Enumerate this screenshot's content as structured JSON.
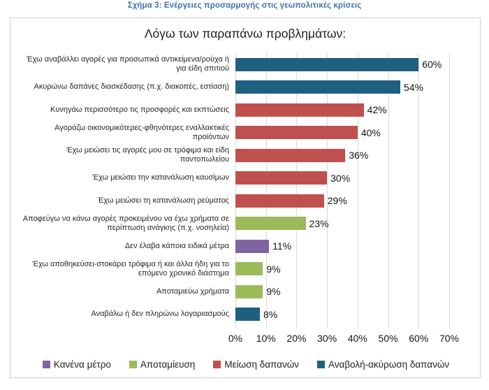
{
  "page": {
    "caption": "Σχήμα 3: Ενέργειες προσαρμογής στις γεωπολιτικές κρίσεις"
  },
  "colors": {
    "caption_blue": "#3e73b0",
    "gridline": "#d9d9d9",
    "box_border": "#cfcfcf"
  },
  "chart_data": {
    "type": "bar",
    "orientation": "horizontal",
    "title": "Λόγω των παραπάνω προβλημάτων:",
    "xlabel": "",
    "ylabel": "",
    "xlim": [
      0,
      70
    ],
    "x_ticks": [
      "0%",
      "10%",
      "20%",
      "30%",
      "40%",
      "50%",
      "60%",
      "70%"
    ],
    "grid": true,
    "legend_position": "bottom",
    "series": [
      {
        "name": "Κανένα μέτρο",
        "color": "#8064a2"
      },
      {
        "name": "Αποταμίευση",
        "color": "#9bbb59"
      },
      {
        "name": "Μείωση δαπανών",
        "color": "#c0504d"
      },
      {
        "name": "Αναβολή-ακύρωση δαπανών",
        "color": "#1f5f7f"
      }
    ],
    "bars": [
      {
        "label": "Έχω αναβάλλει αγορές για προσωπικά αντικείμενα/ρούχα ή για είδη σπιτιού",
        "value": 60,
        "value_label": "60%",
        "series": "Αναβολή-ακύρωση δαπανών"
      },
      {
        "label": "Ακυρώνω δαπάνες διασκέδασης (π.χ. διακοπές, εστίαση)",
        "value": 54,
        "value_label": "54%",
        "series": "Αναβολή-ακύρωση δαπανών"
      },
      {
        "label": "Κυνηγάω περισσότερο τις προσφορές και εκπτώσεις",
        "value": 42,
        "value_label": "42%",
        "series": "Μείωση δαπανών"
      },
      {
        "label": "Αγοράζω οικονομικότερες-φθηνότερες εναλλακτικές προϊόντων",
        "value": 40,
        "value_label": "40%",
        "series": "Μείωση δαπανών"
      },
      {
        "label": "Έχω μειώσει τις αγορές μου σε τρόφιμα και είδη παντοπωλείου",
        "value": 36,
        "value_label": "36%",
        "series": "Μείωση δαπανών"
      },
      {
        "label": "Έχω μειώσει την κατανάλωση καυσίμων",
        "value": 30,
        "value_label": "30%",
        "series": "Μείωση δαπανών"
      },
      {
        "label": "Έχω μειώσει τη κατανάλωση ρεύματος",
        "value": 29,
        "value_label": "29%",
        "series": "Μείωση δαπανών"
      },
      {
        "label": "Αποφεύγω να κάνω αγορές προκειμένου να έχω χρήματα σε περίπτωση ανάγκης (π.χ. νοσηλεία)",
        "value": 23,
        "value_label": "23%",
        "series": "Αποταμίευση"
      },
      {
        "label": "Δεν έλαβα κάποια ειδικά μέτρα",
        "value": 11,
        "value_label": "11%",
        "series": "Κανένα μέτρο"
      },
      {
        "label": "Έχω αποθηκεύσει-στοκάρει τρόφιμα ή και άλλα ήδη για το επόμενο χρονικό διάστημα",
        "value": 9,
        "value_label": "9%",
        "series": "Αποταμίευση"
      },
      {
        "label": "Αποταμιεύω χρήματα",
        "value": 9,
        "value_label": "9%",
        "series": "Αποταμίευση"
      },
      {
        "label": "Αναβάλω ή δεν πληρώνω λογαριασμούς",
        "value": 8,
        "value_label": "8%",
        "series": "Αναβολή-ακύρωση δαπανών"
      }
    ]
  }
}
